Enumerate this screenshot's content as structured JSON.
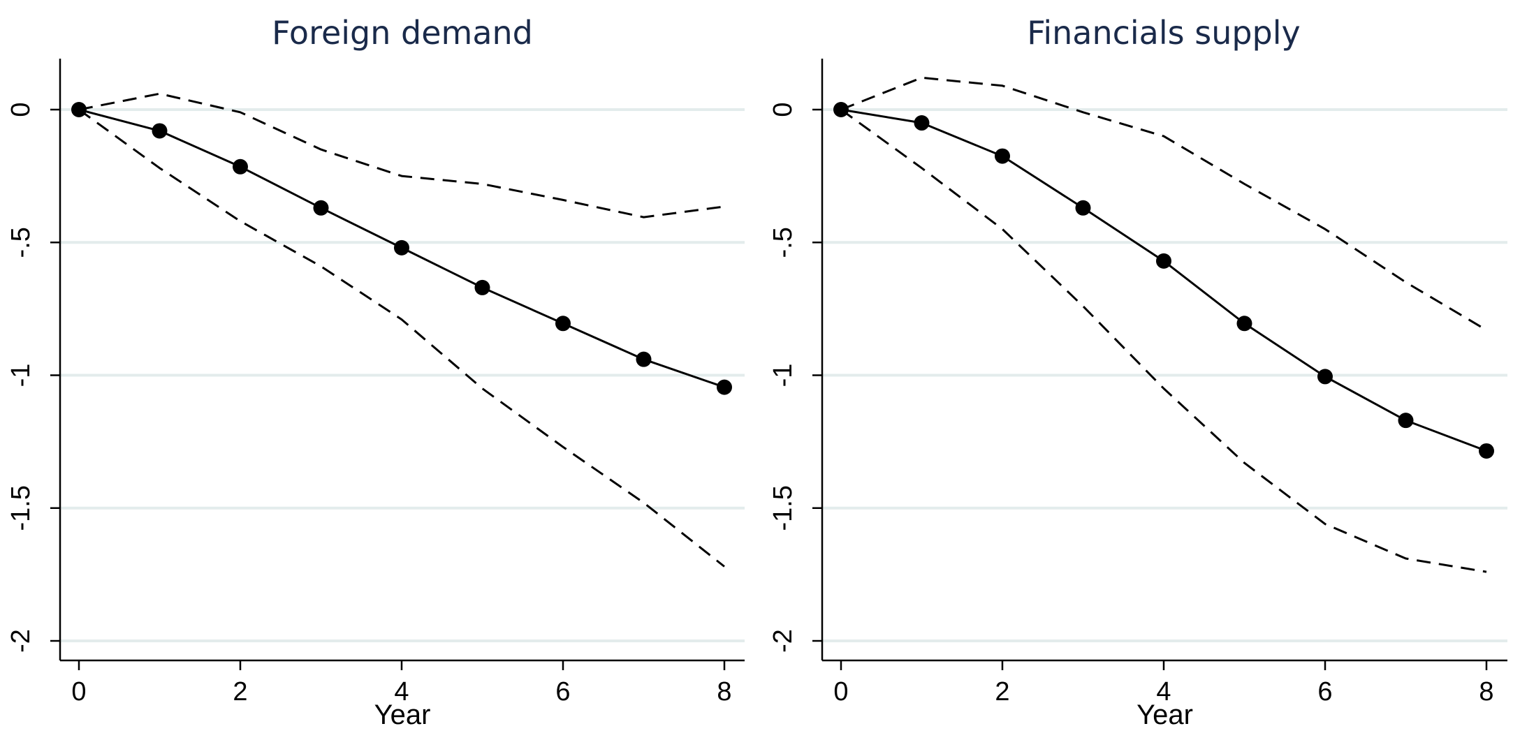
{
  "chart_data": [
    {
      "type": "line",
      "title": "Foreign demand",
      "xlabel": "Year",
      "ylabel": "",
      "xlim": [
        0,
        8
      ],
      "ylim": [
        -2,
        0
      ],
      "xticks": [
        0,
        2,
        4,
        6,
        8
      ],
      "yticks": [
        0,
        -0.5,
        -1,
        -1.5,
        -2
      ],
      "xtick_labels": [
        "0",
        "2",
        "4",
        "6",
        "8"
      ],
      "ytick_labels": [
        "0",
        "-.5",
        "-1",
        "-1.5",
        "-2"
      ],
      "grid": "horizontal",
      "x": [
        0,
        1,
        2,
        3,
        4,
        5,
        6,
        7,
        8
      ],
      "series": [
        {
          "role": "estimate",
          "style": "solid-markers",
          "values": [
            0,
            -0.08,
            -0.215,
            -0.37,
            -0.52,
            -0.67,
            -0.805,
            -0.94,
            -1.045
          ]
        },
        {
          "role": "upper",
          "style": "dashed",
          "values": [
            0,
            0.06,
            -0.01,
            -0.15,
            -0.25,
            -0.28,
            -0.34,
            -0.405,
            -0.365
          ]
        },
        {
          "role": "lower",
          "style": "dashed",
          "values": [
            0,
            -0.22,
            -0.42,
            -0.59,
            -0.79,
            -1.05,
            -1.27,
            -1.48,
            -1.72
          ]
        }
      ]
    },
    {
      "type": "line",
      "title": "Financials supply",
      "xlabel": "Year",
      "ylabel": "",
      "xlim": [
        0,
        8
      ],
      "ylim": [
        -2,
        0
      ],
      "xticks": [
        0,
        2,
        4,
        6,
        8
      ],
      "yticks": [
        0,
        -0.5,
        -1,
        -1.5,
        -2
      ],
      "xtick_labels": [
        "0",
        "2",
        "4",
        "6",
        "8"
      ],
      "ytick_labels": [
        "0",
        "-.5",
        "-1",
        "-1.5",
        "-2"
      ],
      "grid": "horizontal",
      "x": [
        0,
        1,
        2,
        3,
        4,
        5,
        6,
        7,
        8
      ],
      "series": [
        {
          "role": "estimate",
          "style": "solid-markers",
          "values": [
            0,
            -0.05,
            -0.175,
            -0.37,
            -0.57,
            -0.805,
            -1.005,
            -1.17,
            -1.285
          ]
        },
        {
          "role": "upper",
          "style": "dashed",
          "values": [
            0,
            0.12,
            0.09,
            -0.01,
            -0.1,
            -0.28,
            -0.45,
            -0.65,
            -0.83
          ]
        },
        {
          "role": "lower",
          "style": "dashed",
          "values": [
            0,
            -0.22,
            -0.45,
            -0.74,
            -1.05,
            -1.33,
            -1.56,
            -1.69,
            -1.74
          ]
        }
      ]
    }
  ],
  "colors": {
    "title": "#1a2a4a",
    "line": "#000000",
    "grid": "#e3ecec",
    "axis": "#000000"
  }
}
